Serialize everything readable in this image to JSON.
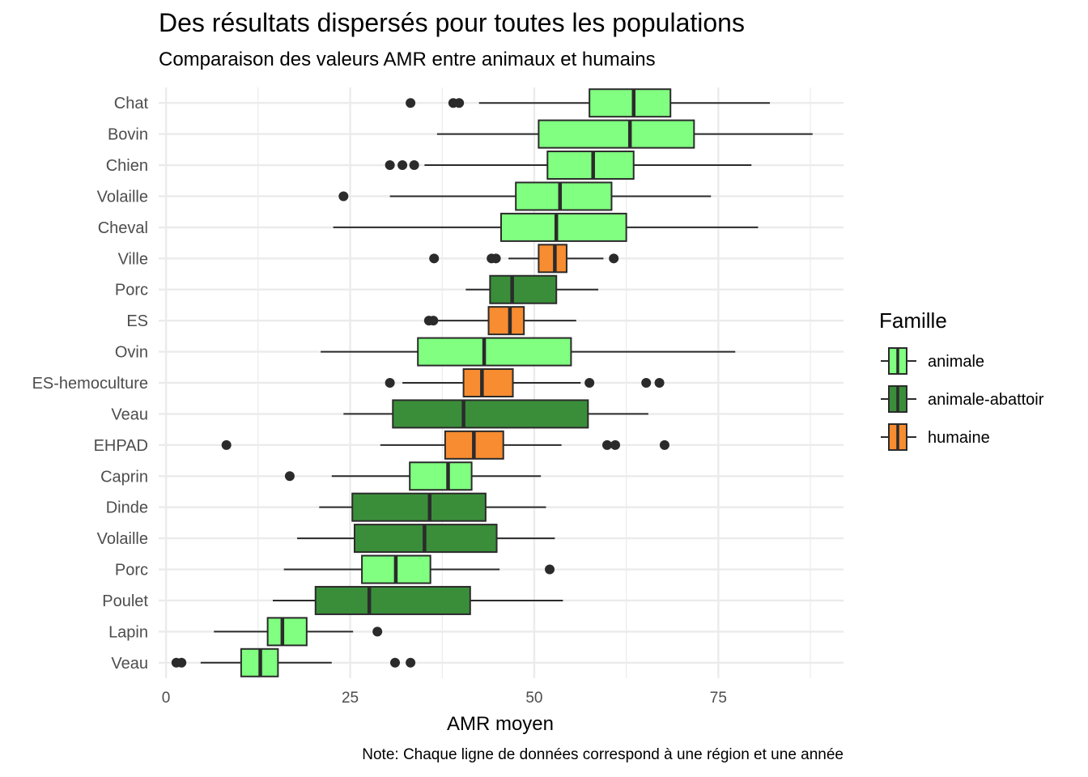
{
  "title": "Des résultats dispersés pour toutes les populations",
  "subtitle": "Comparaison des valeurs AMR entre animaux et humains",
  "caption": "Note: Chaque ligne de données correspond à une région et une année",
  "chart_data": {
    "type": "boxplot",
    "orientation": "horizontal",
    "xlabel": "AMR moyen",
    "ylabel": "",
    "xlim": [
      -1,
      92
    ],
    "xticks": [
      0,
      25,
      50,
      75
    ],
    "grid": true,
    "legend": {
      "title": "Famille",
      "position": "right",
      "entries": [
        {
          "name": "animale",
          "color": "#80FF80"
        },
        {
          "name": "animale-abattoir",
          "color": "#3A8E3A"
        },
        {
          "name": "humaine",
          "color": "#F88C30"
        }
      ]
    },
    "boxes": [
      {
        "label": "Chat",
        "family": "animale",
        "whisker_low": 42.5,
        "q1": 57.5,
        "median": 63.5,
        "q3": 68.5,
        "whisker_high": 82,
        "outliers": [
          33.2,
          39,
          39.8
        ]
      },
      {
        "label": "Bovin",
        "family": "animale",
        "whisker_low": 36.8,
        "q1": 50.6,
        "median": 63,
        "q3": 71.7,
        "whisker_high": 87.8,
        "outliers": []
      },
      {
        "label": "Chien",
        "family": "animale",
        "whisker_low": 35.1,
        "q1": 51.8,
        "median": 58,
        "q3": 63.5,
        "whisker_high": 79.5,
        "outliers": [
          30.4,
          32.1,
          33.7
        ]
      },
      {
        "label": "Volaille",
        "family": "animale",
        "whisker_low": 30.4,
        "q1": 47.5,
        "median": 53.5,
        "q3": 60.5,
        "whisker_high": 74,
        "outliers": [
          24.1
        ]
      },
      {
        "label": "Cheval",
        "family": "animale",
        "whisker_low": 22.7,
        "q1": 45.5,
        "median": 53,
        "q3": 62.5,
        "whisker_high": 80.4,
        "outliers": []
      },
      {
        "label": "Ville",
        "family": "humaine",
        "whisker_low": 46.5,
        "q1": 50.6,
        "median": 52.8,
        "q3": 54.4,
        "whisker_high": 59.4,
        "outliers": [
          36.4,
          44.2,
          44.8,
          60.8
        ]
      },
      {
        "label": "Porc",
        "family": "animale-abattoir",
        "whisker_low": 40.7,
        "q1": 44,
        "median": 47,
        "q3": 53,
        "whisker_high": 58.7,
        "outliers": []
      },
      {
        "label": "ES",
        "family": "humaine",
        "whisker_low": 36.8,
        "q1": 43.8,
        "median": 46.7,
        "q3": 48.6,
        "whisker_high": 55.7,
        "outliers": [
          35.7,
          36.3
        ]
      },
      {
        "label": "Ovin",
        "family": "animale",
        "whisker_low": 21,
        "q1": 34.2,
        "median": 43.2,
        "q3": 55,
        "whisker_high": 77.3,
        "outliers": []
      },
      {
        "label": "ES-hemoculture",
        "family": "humaine",
        "whisker_low": 32.1,
        "q1": 40.4,
        "median": 42.9,
        "q3": 47.1,
        "whisker_high": 56.3,
        "outliers": [
          30.4,
          57.5,
          65.2,
          67
        ]
      },
      {
        "label": "Veau",
        "family": "animale-abattoir",
        "whisker_low": 24.1,
        "q1": 30.8,
        "median": 40.4,
        "q3": 57.3,
        "whisker_high": 65.5,
        "outliers": []
      },
      {
        "label": "EHPAD",
        "family": "humaine",
        "whisker_low": 29.1,
        "q1": 37.9,
        "median": 41.8,
        "q3": 45.8,
        "whisker_high": 53.7,
        "outliers": [
          8.2,
          59.9,
          61,
          67.7
        ]
      },
      {
        "label": "Caprin",
        "family": "animale",
        "whisker_low": 22.5,
        "q1": 33.1,
        "median": 38.3,
        "q3": 41.5,
        "whisker_high": 50.9,
        "outliers": [
          16.8
        ]
      },
      {
        "label": "Dinde",
        "family": "animale-abattoir",
        "whisker_low": 20.8,
        "q1": 25.3,
        "median": 35.8,
        "q3": 43.4,
        "whisker_high": 51.6,
        "outliers": []
      },
      {
        "label": "Volaille",
        "family": "animale-abattoir",
        "whisker_low": 17.8,
        "q1": 25.6,
        "median": 35.1,
        "q3": 44.9,
        "whisker_high": 52.8,
        "outliers": []
      },
      {
        "label": "Porc",
        "family": "animale",
        "whisker_low": 16,
        "q1": 26.6,
        "median": 31.2,
        "q3": 35.9,
        "whisker_high": 45.3,
        "outliers": [
          52.1
        ]
      },
      {
        "label": "Poulet",
        "family": "animale-abattoir",
        "whisker_low": 14.5,
        "q1": 20.3,
        "median": 27.6,
        "q3": 41.3,
        "whisker_high": 53.9,
        "outliers": []
      },
      {
        "label": "Lapin",
        "family": "animale",
        "whisker_low": 6.5,
        "q1": 13.8,
        "median": 15.8,
        "q3": 19.1,
        "whisker_high": 25.4,
        "outliers": [
          28.7
        ]
      },
      {
        "label": "Veau",
        "family": "animale",
        "whisker_low": 4.7,
        "q1": 10.2,
        "median": 12.8,
        "q3": 15.2,
        "whisker_high": 22.5,
        "outliers": [
          1.4,
          2.1,
          31.1,
          33.2
        ]
      }
    ]
  }
}
